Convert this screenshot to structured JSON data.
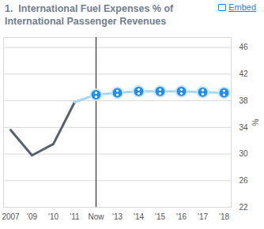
{
  "chart_data": {
    "type": "line",
    "title": "1.  International Fuel Expenses % of International Passenger Revenues",
    "link_text": "Embed",
    "y_label": "%",
    "categories": [
      "2007",
      "'09",
      "'10",
      "'11",
      "Now",
      "'13",
      "'14",
      "'15",
      "'16",
      "'17",
      "'18"
    ],
    "series": [
      {
        "color": "#58626d",
        "values": [
          33.6,
          29.8,
          31.5,
          37.8,
          null,
          null,
          null,
          null,
          null,
          null,
          null
        ]
      },
      {
        "color": "#a9d6f5",
        "values": [
          null,
          null,
          null,
          37.8,
          38.9,
          39.2,
          39.4,
          39.4,
          39.4,
          39.3,
          39.2
        ]
      },
      {
        "type": "scatter",
        "color": "#1e8ef0",
        "marker": "circle",
        "values": [
          null,
          null,
          null,
          null,
          38.9,
          39.2,
          39.4,
          39.4,
          39.4,
          39.3,
          39.2
        ]
      }
    ],
    "ylim": [
      22,
      47.5
    ],
    "yticks": [
      22,
      26,
      30,
      34,
      38,
      42,
      46
    ],
    "grid": true
  }
}
